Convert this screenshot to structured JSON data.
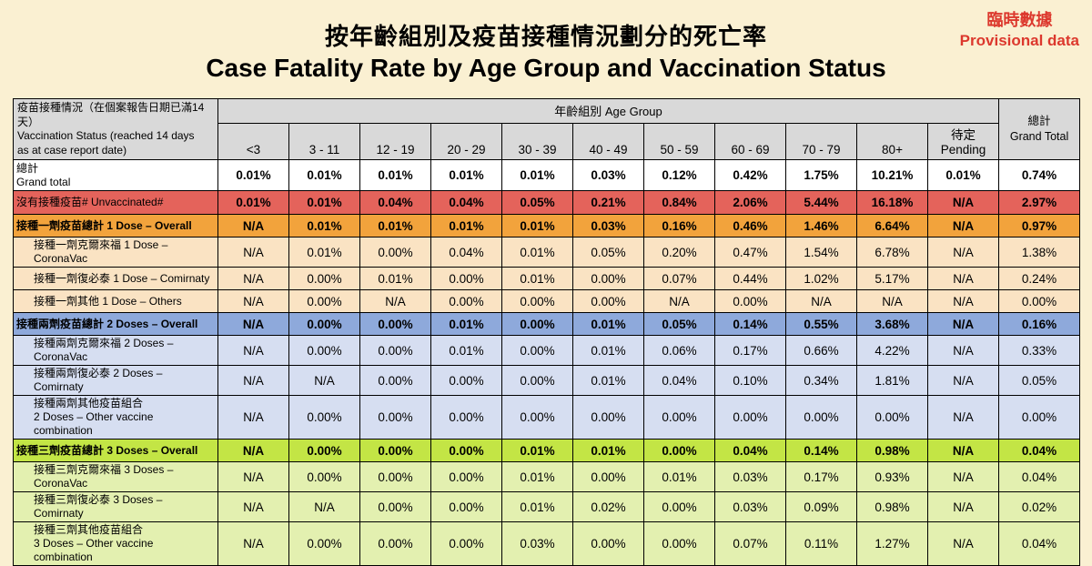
{
  "header": {
    "title_zh": "按年齡組別及疫苗接種情況劃分的死亡率",
    "title_en": "Case Fatality Rate by Age Group and Vaccination Status",
    "provisional_zh": "臨時數據",
    "provisional_en": "Provisional data"
  },
  "colors": {
    "page_bg": "#FAF0D2",
    "provisional_color": "#DC382D",
    "header_bg": "#D9D9D9",
    "total_bg": "#FFFFFF",
    "unvaccinated_bg": "#E4635B",
    "dose1_overall_bg": "#F2A33C",
    "dose1_sub_bg": "#FAE3C3",
    "dose2_overall_bg": "#8EA9DB",
    "dose2_sub_bg": "#D6DEF1",
    "dose3_overall_bg": "#C3E545",
    "dose3_sub_bg": "#E3F0B0"
  },
  "chart_data": {
    "type": "table",
    "title": "Case Fatality Rate by Age Group and Vaccination Status",
    "title_zh": "按年齡組別及疫苗接種情況劃分的死亡率",
    "corner_header": "疫苗接種情況（在個案報告日期已滿14天）\nVaccination Status (reached 14 days\nas at case report date)",
    "age_group_header": "年齡組別 Age Group",
    "grand_total_header": "總計\nGrand Total",
    "columns": [
      "<3",
      "3 - 11",
      "12 - 19",
      "20 - 29",
      "30 - 39",
      "40 - 49",
      "50 - 59",
      "60 - 69",
      "70 - 79",
      "80+",
      "待定 Pending"
    ],
    "rows": [
      {
        "id": "grand-total",
        "label": "總計\nGrand total",
        "style": "total",
        "indent": false,
        "bold_label": false,
        "bold_values": true,
        "two_line": false,
        "values": [
          "0.01%",
          "0.01%",
          "0.01%",
          "0.01%",
          "0.01%",
          "0.03%",
          "0.12%",
          "0.42%",
          "1.75%",
          "10.21%",
          "0.01%",
          "0.74%"
        ]
      },
      {
        "id": "unvaccinated",
        "label": "沒有接種疫苗# Unvaccinated#",
        "style": "unvaccinated",
        "indent": false,
        "bold_label": false,
        "bold_values": true,
        "two_line": false,
        "values": [
          "0.01%",
          "0.01%",
          "0.04%",
          "0.04%",
          "0.05%",
          "0.21%",
          "0.84%",
          "2.06%",
          "5.44%",
          "16.18%",
          "N/A",
          "2.97%"
        ]
      },
      {
        "id": "dose1-overall",
        "label": "接種一劑疫苗總計 1 Dose – Overall",
        "style": "dose1-overall",
        "indent": false,
        "bold_label": true,
        "bold_values": true,
        "two_line": false,
        "values": [
          "N/A",
          "0.01%",
          "0.01%",
          "0.01%",
          "0.01%",
          "0.03%",
          "0.16%",
          "0.46%",
          "1.46%",
          "6.64%",
          "N/A",
          "0.97%"
        ]
      },
      {
        "id": "dose1-coronavac",
        "label": "接種一劑克爾來福 1 Dose – CoronaVac",
        "style": "dose1-sub",
        "indent": true,
        "bold_label": false,
        "bold_values": false,
        "two_line": false,
        "values": [
          "N/A",
          "0.01%",
          "0.00%",
          "0.04%",
          "0.01%",
          "0.05%",
          "0.20%",
          "0.47%",
          "1.54%",
          "6.78%",
          "N/A",
          "1.38%"
        ]
      },
      {
        "id": "dose1-comirnaty",
        "label": "接種一劑復必泰 1 Dose – Comirnaty",
        "style": "dose1-sub",
        "indent": true,
        "bold_label": false,
        "bold_values": false,
        "two_line": false,
        "values": [
          "N/A",
          "0.00%",
          "0.01%",
          "0.00%",
          "0.01%",
          "0.00%",
          "0.07%",
          "0.44%",
          "1.02%",
          "5.17%",
          "N/A",
          "0.24%"
        ]
      },
      {
        "id": "dose1-others",
        "label": "接種一劑其他 1 Dose – Others",
        "style": "dose1-sub",
        "indent": true,
        "bold_label": false,
        "bold_values": false,
        "two_line": false,
        "values": [
          "N/A",
          "0.00%",
          "N/A",
          "0.00%",
          "0.00%",
          "0.00%",
          "N/A",
          "0.00%",
          "N/A",
          "N/A",
          "N/A",
          "0.00%"
        ]
      },
      {
        "id": "dose2-overall",
        "label": "接種兩劑疫苗總計 2 Doses – Overall",
        "style": "dose2-overall",
        "indent": false,
        "bold_label": true,
        "bold_values": true,
        "two_line": false,
        "values": [
          "N/A",
          "0.00%",
          "0.00%",
          "0.01%",
          "0.00%",
          "0.01%",
          "0.05%",
          "0.14%",
          "0.55%",
          "3.68%",
          "N/A",
          "0.16%"
        ]
      },
      {
        "id": "dose2-coronavac",
        "label": "接種兩劑克爾來福 2 Doses – CoronaVac",
        "style": "dose2-sub",
        "indent": true,
        "bold_label": false,
        "bold_values": false,
        "two_line": false,
        "values": [
          "N/A",
          "0.00%",
          "0.00%",
          "0.01%",
          "0.00%",
          "0.01%",
          "0.06%",
          "0.17%",
          "0.66%",
          "4.22%",
          "N/A",
          "0.33%"
        ]
      },
      {
        "id": "dose2-comirnaty",
        "label": "接種兩劑復必泰 2 Doses – Comirnaty",
        "style": "dose2-sub",
        "indent": true,
        "bold_label": false,
        "bold_values": false,
        "two_line": false,
        "values": [
          "N/A",
          "N/A",
          "0.00%",
          "0.00%",
          "0.00%",
          "0.01%",
          "0.04%",
          "0.10%",
          "0.34%",
          "1.81%",
          "N/A",
          "0.05%"
        ]
      },
      {
        "id": "dose2-other-combo",
        "label": "接種兩劑其他疫苗組合\n2 Doses – Other vaccine combination",
        "style": "dose2-sub",
        "indent": true,
        "bold_label": false,
        "bold_values": false,
        "two_line": true,
        "values": [
          "N/A",
          "0.00%",
          "0.00%",
          "0.00%",
          "0.00%",
          "0.00%",
          "0.00%",
          "0.00%",
          "0.00%",
          "0.00%",
          "N/A",
          "0.00%"
        ]
      },
      {
        "id": "dose3-overall",
        "label": "接種三劑疫苗總計 3 Doses – Overall",
        "style": "dose3-overall",
        "indent": false,
        "bold_label": true,
        "bold_values": true,
        "two_line": false,
        "values": [
          "N/A",
          "0.00%",
          "0.00%",
          "0.00%",
          "0.01%",
          "0.01%",
          "0.00%",
          "0.04%",
          "0.14%",
          "0.98%",
          "N/A",
          "0.04%"
        ]
      },
      {
        "id": "dose3-coronavac",
        "label": "接種三劑克爾來福 3 Doses – CoronaVac",
        "style": "dose3-sub",
        "indent": true,
        "bold_label": false,
        "bold_values": false,
        "two_line": false,
        "values": [
          "N/A",
          "0.00%",
          "0.00%",
          "0.00%",
          "0.01%",
          "0.00%",
          "0.01%",
          "0.03%",
          "0.17%",
          "0.93%",
          "N/A",
          "0.04%"
        ]
      },
      {
        "id": "dose3-comirnaty",
        "label": "接種三劑復必泰 3 Doses – Comirnaty",
        "style": "dose3-sub",
        "indent": true,
        "bold_label": false,
        "bold_values": false,
        "two_line": false,
        "values": [
          "N/A",
          "N/A",
          "0.00%",
          "0.00%",
          "0.01%",
          "0.02%",
          "0.00%",
          "0.03%",
          "0.09%",
          "0.98%",
          "N/A",
          "0.02%"
        ]
      },
      {
        "id": "dose3-other-combo",
        "label": "接種三劑其他疫苗組合\n3 Doses – Other vaccine combination",
        "style": "dose3-sub",
        "indent": true,
        "bold_label": false,
        "bold_values": false,
        "two_line": true,
        "values": [
          "N/A",
          "0.00%",
          "0.00%",
          "0.00%",
          "0.03%",
          "0.00%",
          "0.00%",
          "0.07%",
          "0.11%",
          "1.27%",
          "N/A",
          "0.04%"
        ]
      }
    ]
  }
}
